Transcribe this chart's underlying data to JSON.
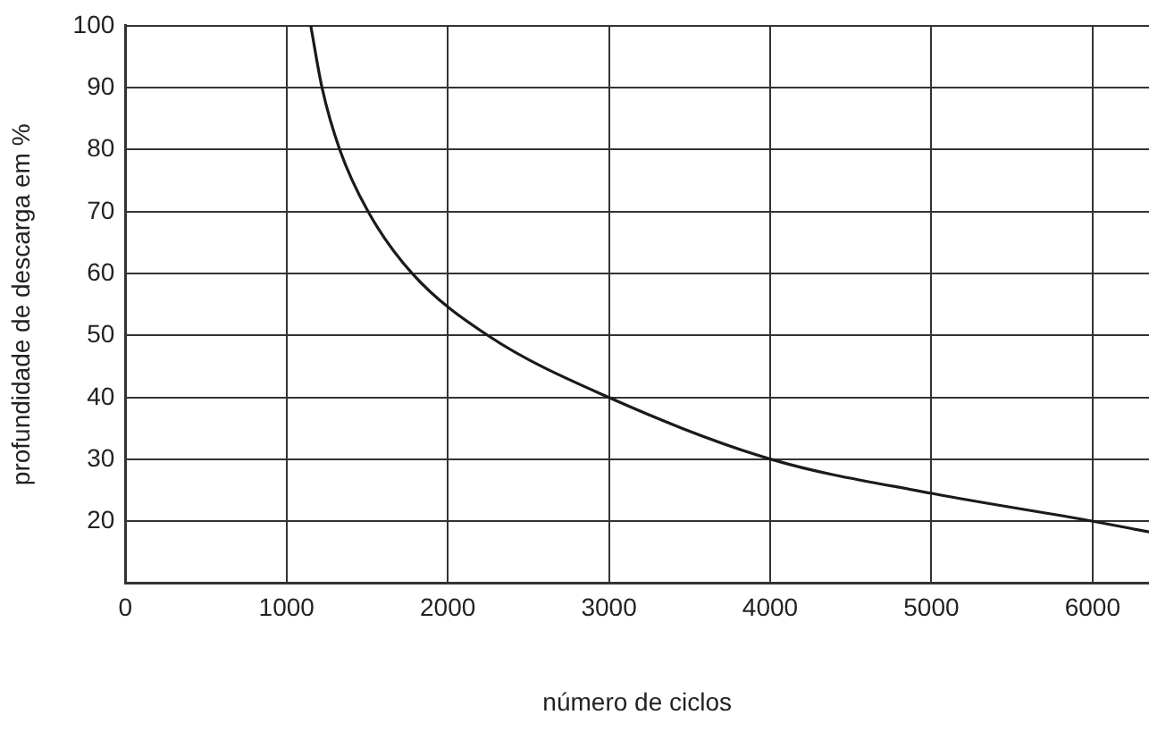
{
  "chart_data": {
    "type": "line",
    "xlabel": "número de ciclos",
    "ylabel": "profundidade de descarga em %",
    "series": [
      {
        "color": "#1a1a1a",
        "x": [
          1150,
          1220,
          1330,
          1506,
          1780,
          2250,
          3000,
          4010,
          5010,
          6010,
          6350
        ],
        "values": [
          100,
          90,
          80,
          70,
          60,
          50,
          40,
          30,
          24.5,
          20,
          18.3
        ]
      }
    ],
    "xlim": [
      0,
      6350
    ],
    "xticks": [
      0,
      1000,
      2000,
      3000,
      4000,
      5000,
      6000
    ],
    "ylim": [
      10,
      100
    ],
    "yticks": [
      20,
      30,
      40,
      50,
      60,
      70,
      80,
      90,
      100
    ],
    "grid": true,
    "legend": false,
    "marker": "none",
    "line_style": "solid"
  }
}
